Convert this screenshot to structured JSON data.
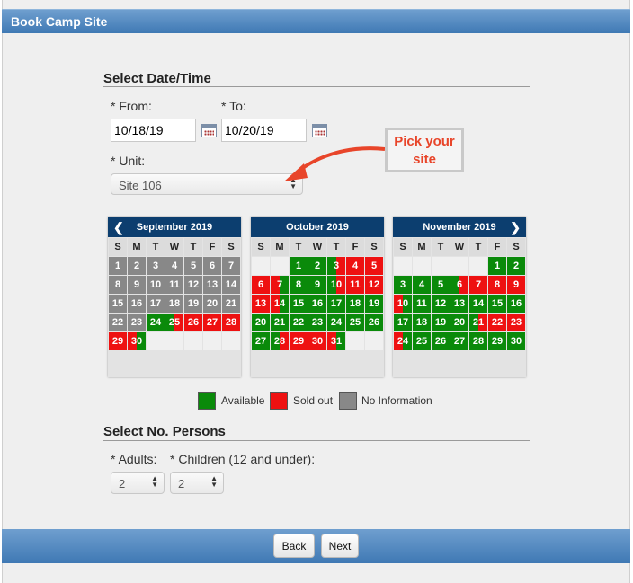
{
  "header": {
    "title": "Book Camp Site"
  },
  "date_section": {
    "title": "Select Date/Time",
    "from_label": "* From:",
    "to_label": "* To:",
    "from_value": "10/18/19",
    "to_value": "10/20/19",
    "unit_label": "* Unit:",
    "unit_value": "Site 106"
  },
  "callout": {
    "line1": "Pick your",
    "line2": "site"
  },
  "calendars": {
    "dow": [
      "S",
      "M",
      "T",
      "W",
      "T",
      "F",
      "S"
    ],
    "months": [
      {
        "title": "September 2019",
        "days": [
          [
            {
              "d": "1",
              "s": "x"
            },
            {
              "d": "2",
              "s": "x"
            },
            {
              "d": "3",
              "s": "x"
            },
            {
              "d": "4",
              "s": "x"
            },
            {
              "d": "5",
              "s": "x"
            },
            {
              "d": "6",
              "s": "x"
            },
            {
              "d": "7",
              "s": "x"
            }
          ],
          [
            {
              "d": "8",
              "s": "x"
            },
            {
              "d": "9",
              "s": "x"
            },
            {
              "d": "10",
              "s": "x"
            },
            {
              "d": "11",
              "s": "x"
            },
            {
              "d": "12",
              "s": "x"
            },
            {
              "d": "13",
              "s": "x"
            },
            {
              "d": "14",
              "s": "x"
            }
          ],
          [
            {
              "d": "15",
              "s": "x"
            },
            {
              "d": "16",
              "s": "x"
            },
            {
              "d": "17",
              "s": "x"
            },
            {
              "d": "18",
              "s": "x"
            },
            {
              "d": "19",
              "s": "x"
            },
            {
              "d": "20",
              "s": "x"
            },
            {
              "d": "21",
              "s": "x"
            }
          ],
          [
            {
              "d": "22",
              "s": "x"
            },
            {
              "d": "23",
              "s": "x"
            },
            {
              "d": "24",
              "s": "g"
            },
            {
              "d": "25",
              "s": "gr"
            },
            {
              "d": "26",
              "s": "r"
            },
            {
              "d": "27",
              "s": "r"
            },
            {
              "d": "28",
              "s": "r"
            }
          ],
          [
            {
              "d": "29",
              "s": "r"
            },
            {
              "d": "30",
              "s": "rg"
            },
            {
              "d": "",
              "s": "e"
            },
            {
              "d": "",
              "s": "e"
            },
            {
              "d": "",
              "s": "e"
            },
            {
              "d": "",
              "s": "e"
            },
            {
              "d": "",
              "s": "e"
            }
          ]
        ]
      },
      {
        "title": "October 2019",
        "days": [
          [
            {
              "d": "",
              "s": "e"
            },
            {
              "d": "",
              "s": "e"
            },
            {
              "d": "1",
              "s": "g"
            },
            {
              "d": "2",
              "s": "g"
            },
            {
              "d": "3",
              "s": "gr"
            },
            {
              "d": "4",
              "s": "r"
            },
            {
              "d": "5",
              "s": "r"
            }
          ],
          [
            {
              "d": "6",
              "s": "r"
            },
            {
              "d": "7",
              "s": "rg"
            },
            {
              "d": "8",
              "s": "g"
            },
            {
              "d": "9",
              "s": "g"
            },
            {
              "d": "10",
              "s": "gr"
            },
            {
              "d": "11",
              "s": "r"
            },
            {
              "d": "12",
              "s": "r"
            }
          ],
          [
            {
              "d": "13",
              "s": "r"
            },
            {
              "d": "14",
              "s": "rg"
            },
            {
              "d": "15",
              "s": "g"
            },
            {
              "d": "16",
              "s": "g"
            },
            {
              "d": "17",
              "s": "g"
            },
            {
              "d": "18",
              "s": "g"
            },
            {
              "d": "19",
              "s": "g"
            }
          ],
          [
            {
              "d": "20",
              "s": "g"
            },
            {
              "d": "21",
              "s": "g"
            },
            {
              "d": "22",
              "s": "g"
            },
            {
              "d": "23",
              "s": "g"
            },
            {
              "d": "24",
              "s": "g"
            },
            {
              "d": "25",
              "s": "g"
            },
            {
              "d": "26",
              "s": "g"
            }
          ],
          [
            {
              "d": "27",
              "s": "g"
            },
            {
              "d": "28",
              "s": "gr"
            },
            {
              "d": "29",
              "s": "r"
            },
            {
              "d": "30",
              "s": "r"
            },
            {
              "d": "31",
              "s": "rg"
            },
            {
              "d": "",
              "s": "e"
            },
            {
              "d": "",
              "s": "e"
            }
          ]
        ]
      },
      {
        "title": "November 2019",
        "days": [
          [
            {
              "d": "",
              "s": "e"
            },
            {
              "d": "",
              "s": "e"
            },
            {
              "d": "",
              "s": "e"
            },
            {
              "d": "",
              "s": "e"
            },
            {
              "d": "",
              "s": "e"
            },
            {
              "d": "1",
              "s": "g"
            },
            {
              "d": "2",
              "s": "g"
            }
          ],
          [
            {
              "d": "3",
              "s": "g"
            },
            {
              "d": "4",
              "s": "g"
            },
            {
              "d": "5",
              "s": "g"
            },
            {
              "d": "6",
              "s": "gr"
            },
            {
              "d": "7",
              "s": "r"
            },
            {
              "d": "8",
              "s": "r"
            },
            {
              "d": "9",
              "s": "r"
            }
          ],
          [
            {
              "d": "10",
              "s": "rg"
            },
            {
              "d": "11",
              "s": "g"
            },
            {
              "d": "12",
              "s": "g"
            },
            {
              "d": "13",
              "s": "g"
            },
            {
              "d": "14",
              "s": "g"
            },
            {
              "d": "15",
              "s": "g"
            },
            {
              "d": "16",
              "s": "g"
            }
          ],
          [
            {
              "d": "17",
              "s": "g"
            },
            {
              "d": "18",
              "s": "g"
            },
            {
              "d": "19",
              "s": "g"
            },
            {
              "d": "20",
              "s": "g"
            },
            {
              "d": "21",
              "s": "gr"
            },
            {
              "d": "22",
              "s": "r"
            },
            {
              "d": "23",
              "s": "r"
            }
          ],
          [
            {
              "d": "24",
              "s": "rg"
            },
            {
              "d": "25",
              "s": "g"
            },
            {
              "d": "26",
              "s": "g"
            },
            {
              "d": "27",
              "s": "g"
            },
            {
              "d": "28",
              "s": "g"
            },
            {
              "d": "29",
              "s": "g"
            },
            {
              "d": "30",
              "s": "g"
            }
          ]
        ]
      }
    ]
  },
  "legend": {
    "available": "Available",
    "sold_out": "Sold out",
    "no_info": "No Information"
  },
  "persons_section": {
    "title": "Select No. Persons",
    "adults_label": "* Adults:",
    "children_label": "* Children (12 and under):",
    "adults_value": "2",
    "children_value": "2"
  },
  "footer": {
    "back_label": "Back",
    "next_label": "Next"
  },
  "colors": {
    "available": "#0a8a0a",
    "sold_out": "#ee1111",
    "no_info": "#888888",
    "header": "#0c3e6f",
    "callout": "#e8452a"
  }
}
